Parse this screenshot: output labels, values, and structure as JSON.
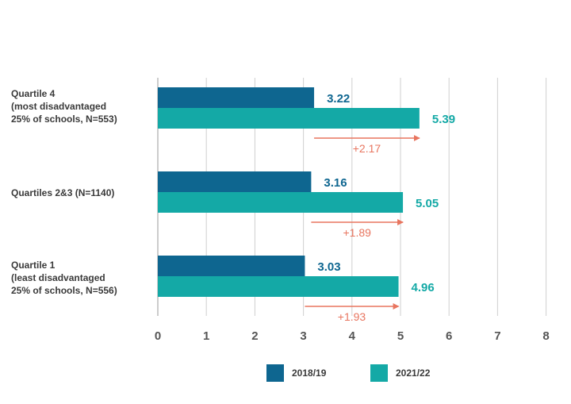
{
  "chart_data": {
    "type": "bar",
    "orientation": "horizontal",
    "categories": [
      "Quartile 4\n(most disadvantaged\n25% of schools, N=553)",
      "Quartiles 2&3 (N=1140)",
      "Quartile 1\n(least disadvantaged\n25% of schools, N=556)"
    ],
    "series": [
      {
        "name": "2018/19",
        "color": "#0e6690",
        "values": [
          3.22,
          3.16,
          3.03
        ]
      },
      {
        "name": "2021/22",
        "color": "#14a9a6",
        "values": [
          5.39,
          5.05,
          4.96
        ]
      }
    ],
    "differences": [
      "+2.17",
      "+1.89",
      "+1.93"
    ],
    "difference_color": "#e8755f",
    "xlim": [
      0,
      8
    ],
    "x_ticks": [
      "0",
      "1",
      "2",
      "3",
      "4",
      "5",
      "6",
      "7",
      "8"
    ],
    "grid": true,
    "legend_position": "bottom",
    "title": "",
    "xlabel": "",
    "ylabel": ""
  }
}
